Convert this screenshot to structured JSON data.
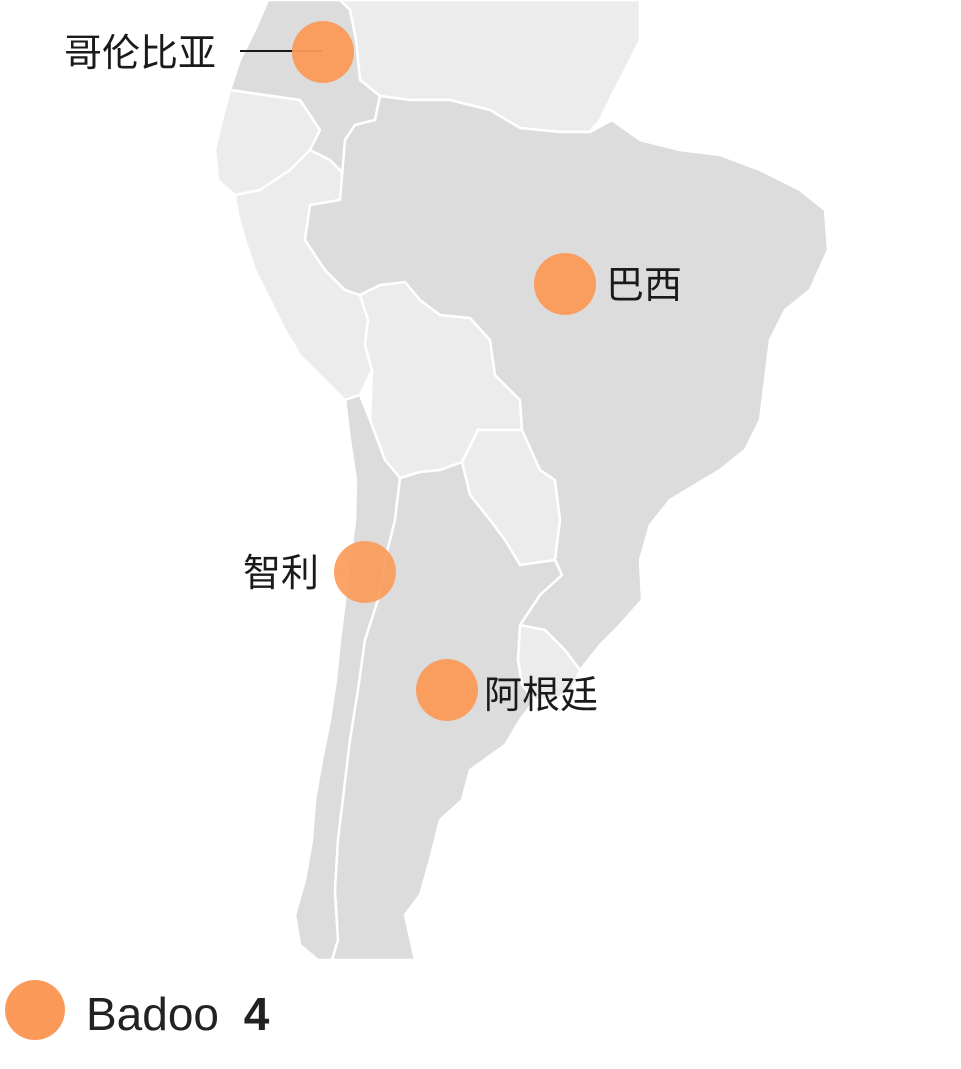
{
  "map": {
    "markers": [
      {
        "id": "colombia",
        "label": "哥伦比亚"
      },
      {
        "id": "brazil",
        "label": "巴西"
      },
      {
        "id": "chile",
        "label": "智利"
      },
      {
        "id": "argentina",
        "label": "阿根廷"
      }
    ]
  },
  "legend": {
    "name": "Badoo",
    "count": "4"
  },
  "colors": {
    "marker": "#fb9a58",
    "land_highlight": "#dcdcdc",
    "land_other": "#ececec",
    "border": "#ffffff",
    "text": "#1a1a1a"
  }
}
